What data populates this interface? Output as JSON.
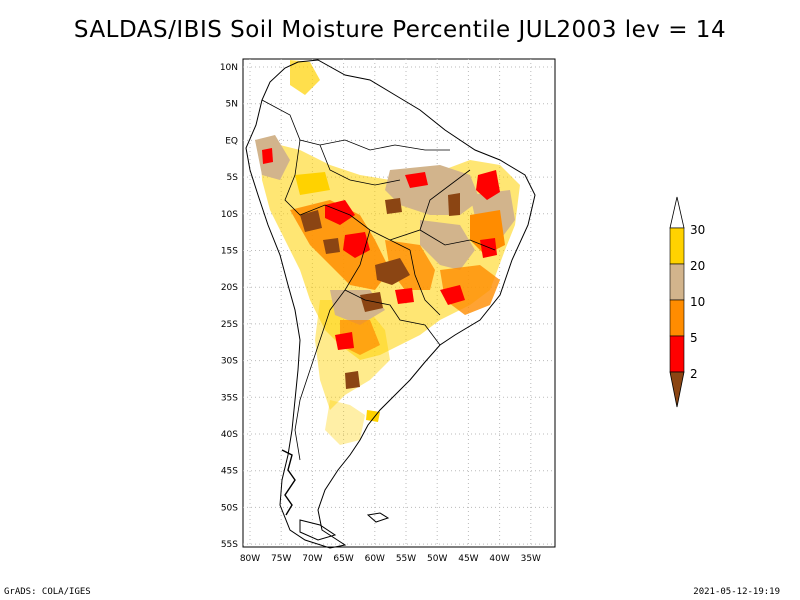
{
  "title": "SALDAS/IBIS Soil Moisture Percentile JUL2003 lev = 14",
  "map": {
    "lat_labels": [
      "10N",
      "5N",
      "EQ",
      "5S",
      "10S",
      "15S",
      "20S",
      "25S",
      "30S",
      "35S",
      "40S",
      "45S",
      "50S",
      "55S"
    ],
    "lon_labels": [
      "80W",
      "75W",
      "70W",
      "65W",
      "60W",
      "55W",
      "50W",
      "45W",
      "40W",
      "35W"
    ],
    "lat_range": [
      -56,
      11
    ],
    "lon_range": [
      -81,
      -32
    ],
    "grid": true
  },
  "legend": {
    "labels": [
      "30",
      "20",
      "10",
      "5",
      "2"
    ],
    "colors": {
      "above_30": "#ffffff",
      "20_30": "#ffd200",
      "10_20": "#d2b48c",
      "5_10": "#ff8c00",
      "2_5": "#ff0000",
      "below_2": "#8b4513"
    }
  },
  "footer": {
    "left": "GrADS: COLA/IGES",
    "right": "2021-05-12-19:19"
  }
}
